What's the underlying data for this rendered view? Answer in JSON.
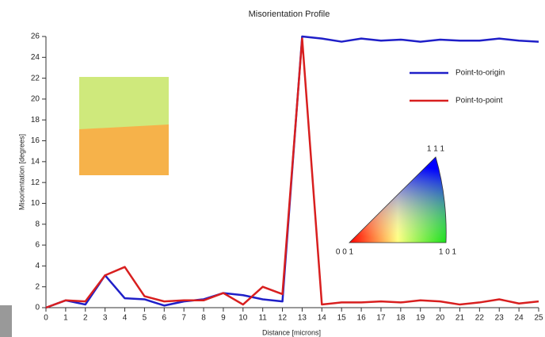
{
  "chart_data": {
    "type": "line",
    "title": "Misorientation Profile",
    "x_label": "Distance [microns]",
    "y_label": "Misorientation [degrees]",
    "x": [
      0,
      1,
      2,
      3,
      4,
      5,
      6,
      7,
      8,
      9,
      10,
      11,
      12,
      13,
      14,
      15,
      16,
      17,
      18,
      19,
      20,
      21,
      22,
      23,
      24,
      25
    ],
    "series": [
      {
        "name": "Point-to-origin",
        "color": "#1f1fc8",
        "values": [
          0,
          0.7,
          0.3,
          3.1,
          0.9,
          0.8,
          0.2,
          0.6,
          0.8,
          1.4,
          1.2,
          0.8,
          0.6,
          26,
          25.8,
          25.5,
          25.8,
          25.6,
          25.7,
          25.5,
          25.7,
          25.6,
          25.6,
          25.8,
          25.6,
          25.5
        ]
      },
      {
        "name": "Point-to-point",
        "color": "#d81f1f",
        "values": [
          0,
          0.7,
          0.6,
          3.1,
          3.9,
          1.1,
          0.6,
          0.7,
          0.7,
          1.4,
          0.3,
          2.0,
          1.3,
          25.8,
          0.3,
          0.5,
          0.5,
          0.6,
          0.5,
          0.7,
          0.6,
          0.3,
          0.5,
          0.8,
          0.4,
          0.6
        ]
      }
    ],
    "xlim": [
      0,
      25
    ],
    "xticks": [
      0,
      1,
      2,
      3,
      4,
      5,
      6,
      7,
      8,
      9,
      10,
      11,
      12,
      13,
      14,
      15,
      16,
      17,
      18,
      19,
      20,
      21,
      22,
      23,
      24,
      25
    ],
    "ylim": [
      0,
      26
    ],
    "yticks": [
      0,
      2,
      4,
      6,
      8,
      10,
      12,
      14,
      16,
      18,
      20,
      22,
      24,
      26
    ],
    "grid": false,
    "annotations": [
      "1 1 1",
      "0 0 1",
      "1 0 1"
    ]
  }
}
